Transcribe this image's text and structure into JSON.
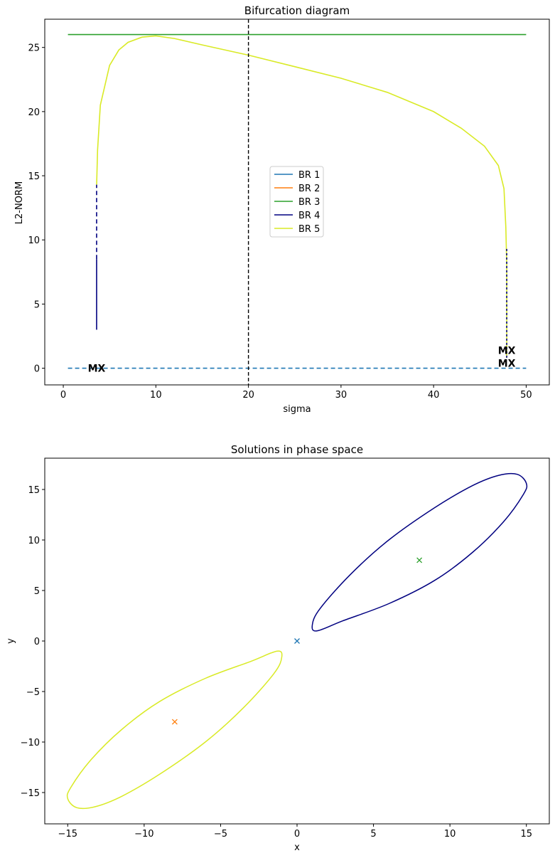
{
  "chart_data": [
    {
      "type": "line",
      "title": "Bifurcation diagram",
      "xlabel": "sigma",
      "ylabel": "L2-NORM",
      "xlim": [
        -2,
        52.5
      ],
      "ylim": [
        -1.3,
        27.2
      ],
      "xticks": [
        0,
        10,
        20,
        30,
        40,
        50
      ],
      "yticks": [
        0,
        5,
        10,
        15,
        20,
        25
      ],
      "legend_position": "center",
      "vertical_line_x": 20,
      "series": [
        {
          "name": "BR 1",
          "color": "#1f77b4",
          "style": "dashed",
          "points": [
            [
              0.5,
              0
            ],
            [
              50,
              0
            ]
          ]
        },
        {
          "name": "BR 2",
          "color": "#ff7f0e",
          "style": "solid",
          "points": []
        },
        {
          "name": "BR 3",
          "color": "#2ca02c",
          "style": "solid",
          "points": [
            [
              0.5,
              26
            ],
            [
              50,
              26
            ]
          ]
        },
        {
          "name": "BR 4",
          "color": "#000080",
          "style": "mixed",
          "points": [
            [
              3.6,
              3.0
            ],
            [
              3.6,
              8.5
            ],
            [
              3.6,
              14.3
            ],
            [
              47.9,
              9.3
            ],
            [
              47.9,
              0.8
            ]
          ]
        },
        {
          "name": "BR 5",
          "color": "#d9ea26",
          "style": "solid",
          "points": [
            [
              3.6,
              14.3
            ],
            [
              3.7,
              17
            ],
            [
              4,
              20.5
            ],
            [
              5,
              23.6
            ],
            [
              6,
              24.8
            ],
            [
              7,
              25.4
            ],
            [
              8.5,
              25.8
            ],
            [
              10,
              25.9
            ],
            [
              12,
              25.7
            ],
            [
              15,
              25.2
            ],
            [
              20,
              24.4
            ],
            [
              25,
              23.5
            ],
            [
              30,
              22.6
            ],
            [
              35,
              21.5
            ],
            [
              40,
              20.0
            ],
            [
              43,
              18.7
            ],
            [
              45.5,
              17.3
            ],
            [
              47,
              15.8
            ],
            [
              47.6,
              14.0
            ],
            [
              47.8,
              11
            ],
            [
              47.9,
              8
            ],
            [
              47.9,
              0.8
            ]
          ]
        }
      ],
      "annotations": [
        {
          "text": "MX",
          "x": 3.6,
          "y": 0
        },
        {
          "text": "MX",
          "x": 47.9,
          "y": 1.4
        },
        {
          "text": "MX",
          "x": 47.9,
          "y": 0.4
        }
      ]
    },
    {
      "type": "line",
      "title": "Solutions in phase space",
      "xlabel": "x",
      "ylabel": "y",
      "xlim": [
        -16.5,
        16.5
      ],
      "ylim": [
        -18.1,
        18.1
      ],
      "xticks": [
        -15,
        -10,
        -5,
        0,
        5,
        10,
        15
      ],
      "yticks": [
        -15,
        -10,
        -5,
        0,
        5,
        10,
        15
      ],
      "markers": [
        {
          "x": 0,
          "y": 0,
          "color": "#1f77b4"
        },
        {
          "x": -8,
          "y": -8,
          "color": "#ff7f0e"
        },
        {
          "x": 8,
          "y": 8,
          "color": "#2ca02c"
        }
      ],
      "series": [
        {
          "color": "#000080",
          "points": [
            [
              1.3,
              1.0
            ],
            [
              3,
              2.0
            ],
            [
              6,
              3.7
            ],
            [
              9,
              6.0
            ],
            [
              11.5,
              8.8
            ],
            [
              13.5,
              11.8
            ],
            [
              14.8,
              14.5
            ],
            [
              15,
              15.6
            ],
            [
              14.4,
              16.5
            ],
            [
              13.2,
              16.4
            ],
            [
              11.5,
              15.4
            ],
            [
              9,
              13.2
            ],
            [
              6,
              10.0
            ],
            [
              3.5,
              6.6
            ],
            [
              1.5,
              3.2
            ],
            [
              1.0,
              1.6
            ],
            [
              1.3,
              1.0
            ]
          ]
        },
        {
          "color": "#d9ea26",
          "points": [
            [
              -1.3,
              -1.0
            ],
            [
              -3,
              -2.0
            ],
            [
              -6,
              -3.7
            ],
            [
              -9,
              -6.0
            ],
            [
              -11.5,
              -8.8
            ],
            [
              -13.5,
              -11.8
            ],
            [
              -14.8,
              -14.5
            ],
            [
              -15,
              -15.6
            ],
            [
              -14.4,
              -16.5
            ],
            [
              -13.2,
              -16.4
            ],
            [
              -11.5,
              -15.4
            ],
            [
              -9,
              -13.2
            ],
            [
              -6,
              -10.0
            ],
            [
              -3.5,
              -6.6
            ],
            [
              -1.5,
              -3.2
            ],
            [
              -1.0,
              -1.6
            ],
            [
              -1.3,
              -1.0
            ]
          ]
        }
      ]
    }
  ]
}
